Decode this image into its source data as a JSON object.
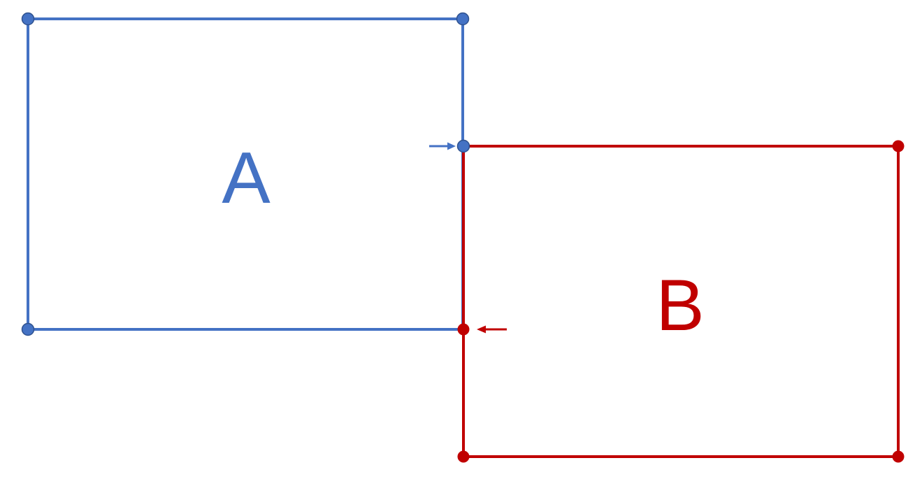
{
  "colors": {
    "background": "#ffffff",
    "rect_a": "#4472c4",
    "rect_b": "#c00000"
  },
  "diagram": {
    "rect_a": {
      "label": "A"
    },
    "rect_b": {
      "label": "B"
    },
    "icons": {
      "arrow_to_a_corner": "arrow-right-icon",
      "arrow_to_b_corner": "arrow-left-icon"
    }
  }
}
